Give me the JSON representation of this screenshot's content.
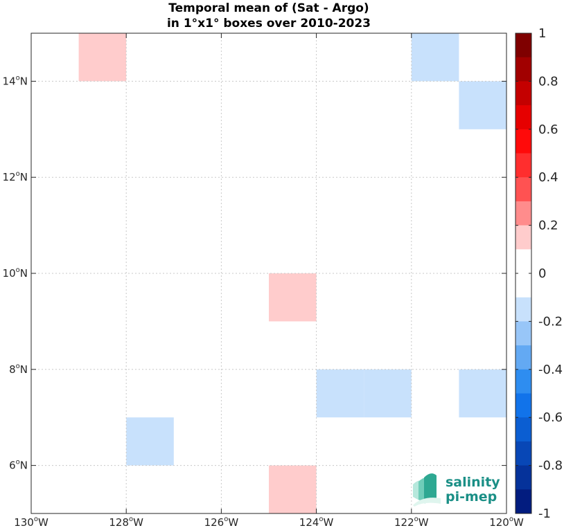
{
  "chart_data": {
    "type": "heatmap",
    "title": [
      "Temporal mean of (Sat - Argo)",
      "in 1°x1° boxes over 2010-2023"
    ],
    "xlabel": "",
    "ylabel": "",
    "xlim": [
      -130,
      -120
    ],
    "ylim": [
      5,
      15
    ],
    "grid": true,
    "x_ticks": [
      {
        "deg": "130",
        "hem": "W"
      },
      {
        "deg": "128",
        "hem": "W"
      },
      {
        "deg": "126",
        "hem": "W"
      },
      {
        "deg": "124",
        "hem": "W"
      },
      {
        "deg": "122",
        "hem": "W"
      },
      {
        "deg": "120",
        "hem": "W"
      }
    ],
    "y_ticks": [
      {
        "deg": "6",
        "hem": "N"
      },
      {
        "deg": "8",
        "hem": "N"
      },
      {
        "deg": "10",
        "hem": "N"
      },
      {
        "deg": "12",
        "hem": "N"
      },
      {
        "deg": "14",
        "hem": "N"
      }
    ],
    "x_tick_values": [
      -130,
      -128,
      -126,
      -124,
      -122,
      -120
    ],
    "y_tick_values": [
      6,
      8,
      10,
      12,
      14
    ],
    "cells": [
      {
        "lon": -129,
        "lat": 14,
        "value": 0.15
      },
      {
        "lon": -122,
        "lat": 14,
        "value": -0.15
      },
      {
        "lon": -121,
        "lat": 13,
        "value": -0.15
      },
      {
        "lon": -125,
        "lat": 9,
        "value": 0.15
      },
      {
        "lon": -124,
        "lat": 7,
        "value": -0.15
      },
      {
        "lon": -123,
        "lat": 7,
        "value": -0.15
      },
      {
        "lon": -121,
        "lat": 7,
        "value": -0.15
      },
      {
        "lon": -128,
        "lat": 6,
        "value": -0.15
      },
      {
        "lon": -125,
        "lat": 5,
        "value": 0.15
      }
    ],
    "colorbar": {
      "range": [
        -1,
        1
      ],
      "tick_values": [
        1,
        0.8,
        0.6,
        0.4,
        0.2,
        0,
        -0.2,
        -0.4,
        -0.6,
        -0.8,
        -1
      ],
      "tick_labels": [
        "1",
        "0.8",
        "0.6",
        "0.4",
        "0.2",
        "0",
        "-0.2",
        "-0.4",
        "-0.6",
        "-0.8",
        "-1"
      ],
      "colors_top_to_bottom": [
        "#7f0000",
        "#a10000",
        "#c40000",
        "#e60000",
        "#ff0a0a",
        "#ff2e2e",
        "#ff5252",
        "#ff8c8c",
        "#ffcccc",
        "#ffffff",
        "#ffffff",
        "#c8e1fc",
        "#98c6f8",
        "#63a9f3",
        "#2e8df0",
        "#1173ea",
        "#0b5ed2",
        "#0847b6",
        "#05329a",
        "#021c7f"
      ]
    }
  },
  "logo": {
    "line1": "salinity",
    "line2": "pi-mep"
  }
}
